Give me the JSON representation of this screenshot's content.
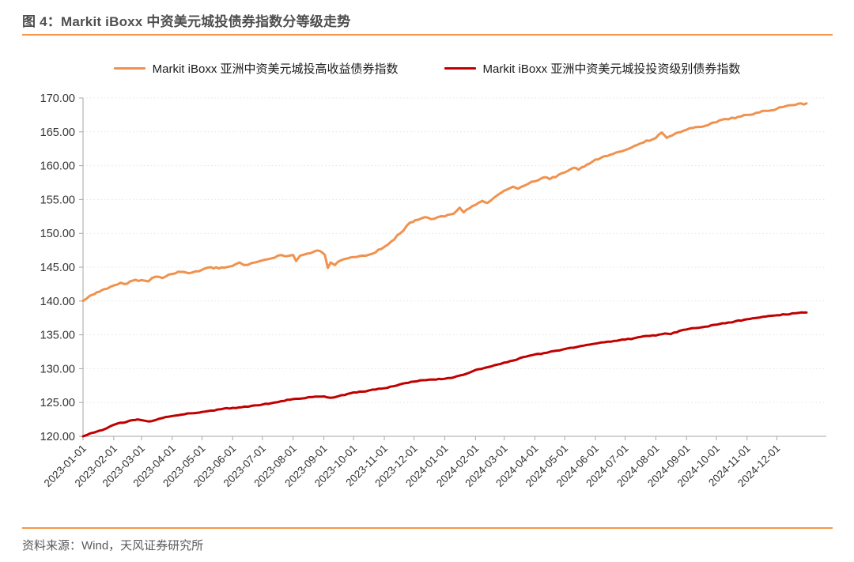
{
  "figure": {
    "title": "图 4：Markit iBoxx 中资美元城投债券指数分等级走势",
    "source": "资料来源：Wind，天风证券研究所"
  },
  "colors": {
    "accent": "#F79646",
    "high_yield_line": "#F0924E",
    "investment_grade_line": "#C00000"
  },
  "chart_data": {
    "type": "line",
    "title": "",
    "legend_position": "top-center",
    "grid": "horizontal-dashed",
    "y_axis": {
      "min": 120,
      "max": 170,
      "step": 5,
      "tick_labels": [
        "120.00",
        "125.00",
        "130.00",
        "135.00",
        "140.00",
        "145.00",
        "150.00",
        "155.00",
        "160.00",
        "165.00",
        "170.00"
      ]
    },
    "x_axis": {
      "domain": [
        "2023-01-01",
        "2025-01-20"
      ],
      "label_rotation_deg": -45,
      "tick_dates": [
        "2023-01-01",
        "2023-02-01",
        "2023-03-01",
        "2023-04-01",
        "2023-05-01",
        "2023-06-01",
        "2023-07-01",
        "2023-08-01",
        "2023-09-01",
        "2023-10-01",
        "2023-11-01",
        "2023-12-01",
        "2024-01-01",
        "2024-02-01",
        "2024-03-01",
        "2024-04-01",
        "2024-05-01",
        "2024-06-01",
        "2024-07-01",
        "2024-08-01",
        "2024-09-01",
        "2024-10-01",
        "2024-11-01",
        "2024-12-01"
      ]
    },
    "series": [
      {
        "name": "Markit iBoxx 亚洲中资美元城投高收益债券指数",
        "color": "#F0924E",
        "points": [
          [
            "2023-01-01",
            140.0
          ],
          [
            "2023-01-05",
            140.4
          ],
          [
            "2023-01-10",
            140.9
          ],
          [
            "2023-01-15",
            141.3
          ],
          [
            "2023-01-20",
            141.6
          ],
          [
            "2023-01-25",
            141.8
          ],
          [
            "2023-02-01",
            142.3
          ],
          [
            "2023-02-08",
            142.7
          ],
          [
            "2023-02-12",
            142.5
          ],
          [
            "2023-02-20",
            143.0
          ],
          [
            "2023-03-01",
            143.1
          ],
          [
            "2023-03-08",
            142.9
          ],
          [
            "2023-03-15",
            143.6
          ],
          [
            "2023-03-22",
            143.4
          ],
          [
            "2023-04-01",
            144.0
          ],
          [
            "2023-04-10",
            144.3
          ],
          [
            "2023-04-18",
            144.1
          ],
          [
            "2023-05-01",
            144.6
          ],
          [
            "2023-05-10",
            145.0
          ],
          [
            "2023-05-18",
            144.8
          ],
          [
            "2023-06-01",
            145.2
          ],
          [
            "2023-06-08",
            145.7
          ],
          [
            "2023-06-13",
            145.3
          ],
          [
            "2023-06-20",
            145.6
          ],
          [
            "2023-07-01",
            146.0
          ],
          [
            "2023-07-10",
            146.3
          ],
          [
            "2023-07-20",
            146.8
          ],
          [
            "2023-07-25",
            146.6
          ],
          [
            "2023-08-01",
            146.8
          ],
          [
            "2023-08-04",
            145.9
          ],
          [
            "2023-08-08",
            146.7
          ],
          [
            "2023-08-15",
            147.0
          ],
          [
            "2023-08-22",
            147.3
          ],
          [
            "2023-08-28",
            147.4
          ],
          [
            "2023-09-02",
            146.8
          ],
          [
            "2023-09-05",
            144.9
          ],
          [
            "2023-09-08",
            145.7
          ],
          [
            "2023-09-12",
            145.3
          ],
          [
            "2023-09-18",
            146.0
          ],
          [
            "2023-09-25",
            146.3
          ],
          [
            "2023-10-01",
            146.5
          ],
          [
            "2023-10-10",
            146.7
          ],
          [
            "2023-10-20",
            147.0
          ],
          [
            "2023-11-01",
            148.0
          ],
          [
            "2023-11-08",
            148.8
          ],
          [
            "2023-11-17",
            150.0
          ],
          [
            "2023-11-27",
            151.6
          ],
          [
            "2023-12-05",
            152.0
          ],
          [
            "2023-12-12",
            152.4
          ],
          [
            "2023-12-18",
            152.1
          ],
          [
            "2023-12-25",
            152.4
          ],
          [
            "2024-01-01",
            152.5
          ],
          [
            "2024-01-10",
            152.9
          ],
          [
            "2024-01-16",
            153.8
          ],
          [
            "2024-01-20",
            153.1
          ],
          [
            "2024-02-01",
            154.2
          ],
          [
            "2024-02-08",
            154.8
          ],
          [
            "2024-02-13",
            154.5
          ],
          [
            "2024-02-20",
            155.3
          ],
          [
            "2024-03-01",
            156.3
          ],
          [
            "2024-03-10",
            156.9
          ],
          [
            "2024-03-15",
            156.6
          ],
          [
            "2024-03-25",
            157.3
          ],
          [
            "2024-04-01",
            157.7
          ],
          [
            "2024-04-10",
            158.3
          ],
          [
            "2024-04-16",
            158.0
          ],
          [
            "2024-05-01",
            159.0
          ],
          [
            "2024-05-10",
            159.7
          ],
          [
            "2024-05-15",
            159.4
          ],
          [
            "2024-06-01",
            160.9
          ],
          [
            "2024-06-10",
            161.4
          ],
          [
            "2024-07-01",
            162.3
          ],
          [
            "2024-07-10",
            162.9
          ],
          [
            "2024-08-01",
            164.1
          ],
          [
            "2024-08-07",
            164.9
          ],
          [
            "2024-08-12",
            164.1
          ],
          [
            "2024-08-20",
            164.7
          ],
          [
            "2024-09-01",
            165.3
          ],
          [
            "2024-09-10",
            165.7
          ],
          [
            "2024-09-20",
            165.9
          ],
          [
            "2024-10-01",
            166.4
          ],
          [
            "2024-10-10",
            166.9
          ],
          [
            "2024-10-20",
            167.0
          ],
          [
            "2024-11-01",
            167.5
          ],
          [
            "2024-11-10",
            167.8
          ],
          [
            "2024-11-20",
            168.1
          ],
          [
            "2024-12-01",
            168.4
          ],
          [
            "2024-12-10",
            168.8
          ],
          [
            "2024-12-20",
            169.0
          ],
          [
            "2024-12-31",
            169.2
          ]
        ]
      },
      {
        "name": "Markit iBoxx 亚洲中资美元城投投资级别债券指数",
        "color": "#C00000",
        "points": [
          [
            "2023-01-01",
            120.0
          ],
          [
            "2023-01-05",
            120.2
          ],
          [
            "2023-01-10",
            120.5
          ],
          [
            "2023-01-15",
            120.7
          ],
          [
            "2023-01-20",
            120.9
          ],
          [
            "2023-01-25",
            121.2
          ],
          [
            "2023-02-01",
            121.7
          ],
          [
            "2023-02-05",
            121.9
          ],
          [
            "2023-02-10",
            122.0
          ],
          [
            "2023-02-15",
            122.2
          ],
          [
            "2023-02-20",
            122.4
          ],
          [
            "2023-02-25",
            122.5
          ],
          [
            "2023-03-01",
            122.4
          ],
          [
            "2023-03-08",
            122.2
          ],
          [
            "2023-03-15",
            122.4
          ],
          [
            "2023-03-22",
            122.7
          ],
          [
            "2023-04-01",
            123.0
          ],
          [
            "2023-04-10",
            123.2
          ],
          [
            "2023-04-20",
            123.4
          ],
          [
            "2023-05-01",
            123.6
          ],
          [
            "2023-05-10",
            123.8
          ],
          [
            "2023-05-20",
            124.0
          ],
          [
            "2023-06-01",
            124.2
          ],
          [
            "2023-06-10",
            124.3
          ],
          [
            "2023-06-20",
            124.5
          ],
          [
            "2023-07-01",
            124.7
          ],
          [
            "2023-07-10",
            124.9
          ],
          [
            "2023-07-20",
            125.2
          ],
          [
            "2023-08-01",
            125.5
          ],
          [
            "2023-08-10",
            125.6
          ],
          [
            "2023-08-20",
            125.8
          ],
          [
            "2023-09-01",
            125.9
          ],
          [
            "2023-09-08",
            125.7
          ],
          [
            "2023-09-15",
            125.9
          ],
          [
            "2023-09-22",
            126.1
          ],
          [
            "2023-10-01",
            126.5
          ],
          [
            "2023-10-10",
            126.6
          ],
          [
            "2023-10-20",
            126.9
          ],
          [
            "2023-11-01",
            127.1
          ],
          [
            "2023-11-10",
            127.4
          ],
          [
            "2023-11-20",
            127.8
          ],
          [
            "2023-12-01",
            128.1
          ],
          [
            "2023-12-10",
            128.3
          ],
          [
            "2023-12-20",
            128.4
          ],
          [
            "2024-01-01",
            128.5
          ],
          [
            "2024-01-10",
            128.7
          ],
          [
            "2024-01-20",
            129.1
          ],
          [
            "2024-02-01",
            129.8
          ],
          [
            "2024-02-10",
            130.1
          ],
          [
            "2024-02-20",
            130.5
          ],
          [
            "2024-03-01",
            130.9
          ],
          [
            "2024-03-10",
            131.2
          ],
          [
            "2024-03-20",
            131.7
          ],
          [
            "2024-04-01",
            132.1
          ],
          [
            "2024-04-10",
            132.3
          ],
          [
            "2024-04-20",
            132.6
          ],
          [
            "2024-05-01",
            132.9
          ],
          [
            "2024-05-10",
            133.1
          ],
          [
            "2024-05-20",
            133.4
          ],
          [
            "2024-06-01",
            133.7
          ],
          [
            "2024-06-10",
            133.9
          ],
          [
            "2024-06-20",
            134.1
          ],
          [
            "2024-07-01",
            134.3
          ],
          [
            "2024-07-10",
            134.5
          ],
          [
            "2024-07-20",
            134.8
          ],
          [
            "2024-08-01",
            134.9
          ],
          [
            "2024-08-10",
            135.2
          ],
          [
            "2024-08-16",
            135.1
          ],
          [
            "2024-08-25",
            135.6
          ],
          [
            "2024-09-01",
            135.8
          ],
          [
            "2024-09-10",
            136.0
          ],
          [
            "2024-09-20",
            136.2
          ],
          [
            "2024-10-01",
            136.5
          ],
          [
            "2024-10-10",
            136.7
          ],
          [
            "2024-10-20",
            137.0
          ],
          [
            "2024-11-01",
            137.3
          ],
          [
            "2024-11-10",
            137.5
          ],
          [
            "2024-11-20",
            137.7
          ],
          [
            "2024-12-01",
            137.9
          ],
          [
            "2024-12-10",
            138.0
          ],
          [
            "2024-12-20",
            138.2
          ],
          [
            "2024-12-31",
            138.3
          ]
        ]
      }
    ]
  }
}
